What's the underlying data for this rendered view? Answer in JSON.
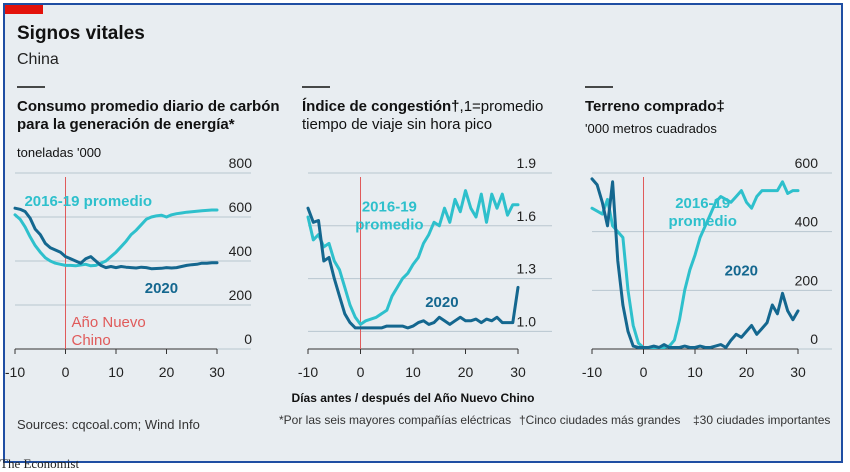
{
  "header": {
    "title": "Signos vitales",
    "subtitle": "China"
  },
  "footer": {
    "sources": "Sources: cqcoal.com; Wind Info",
    "note1": "*Por las seis mayores compañías eléctricas",
    "note2": "†Cinco ciudades más grandes",
    "note3": "‡30 ciudades importantes",
    "xlabel": "Días antes / después del Año Nuevo Chino",
    "brand": "The Economist"
  },
  "colors": {
    "y2020": "#14678f",
    "avg": "#2ec0cc",
    "zero": "#e05a5a",
    "grid": "#b9c6cf",
    "background": "#e8edf1",
    "accent": "#e3120b"
  },
  "chart_data": [
    {
      "type": "line",
      "title": "Consumo promedio diario de carbón para la generación de energía*",
      "title_lines": [
        "Consumo promedio diario de carbón",
        "para la generación de energía*"
      ],
      "unit": "toneladas '000",
      "xlim": [
        -10,
        30
      ],
      "xticks": [
        "-10",
        "0",
        "10",
        "20",
        "30"
      ],
      "ylim": [
        0,
        800
      ],
      "yticks": [
        "800",
        "600",
        "400",
        "200",
        "0"
      ],
      "yticks_values": [
        800,
        600,
        400,
        200,
        0
      ],
      "vline_label_lines": [
        "Año Nuevo",
        "Chino"
      ],
      "series": [
        {
          "name": "2016-19 promedio",
          "label_lines": [
            "2016-19 promedio"
          ],
          "label_at": [
            4.5,
            650
          ],
          "x": [
            -10,
            -9,
            -8,
            -7,
            -6,
            -5,
            -4,
            -3,
            -2,
            -1,
            0,
            1,
            2,
            3,
            4,
            5,
            6,
            7,
            8,
            9,
            10,
            11,
            12,
            13,
            14,
            15,
            16,
            17,
            18,
            19,
            20,
            21,
            22,
            23,
            24,
            25,
            26,
            27,
            28,
            29,
            30
          ],
          "values": [
            610,
            590,
            555,
            510,
            470,
            440,
            415,
            400,
            390,
            385,
            380,
            380,
            378,
            382,
            385,
            378,
            380,
            390,
            400,
            420,
            440,
            465,
            490,
            520,
            540,
            565,
            590,
            600,
            605,
            608,
            600,
            610,
            615,
            618,
            622,
            624,
            626,
            628,
            630,
            632,
            632
          ]
        },
        {
          "name": "2020",
          "label_lines": [
            "2020"
          ],
          "label_at": [
            19,
            255
          ],
          "x": [
            -10,
            -9,
            -8,
            -7,
            -6,
            -5,
            -4,
            -3,
            -2,
            -1,
            0,
            1,
            2,
            3,
            4,
            5,
            6,
            7,
            8,
            9,
            10,
            11,
            12,
            13,
            14,
            15,
            16,
            17,
            18,
            19,
            20,
            21,
            22,
            23,
            24,
            25,
            26,
            27,
            28,
            29,
            30
          ],
          "values": [
            640,
            635,
            625,
            595,
            545,
            520,
            480,
            460,
            450,
            440,
            420,
            410,
            400,
            390,
            410,
            420,
            400,
            380,
            370,
            375,
            370,
            375,
            372,
            370,
            368,
            372,
            370,
            365,
            366,
            367,
            370,
            368,
            370,
            375,
            380,
            383,
            385,
            390,
            390,
            392,
            392
          ]
        }
      ]
    },
    {
      "type": "line",
      "title": "Índice de congestión†, 1=promedio tiempo de viaje sin hora pico",
      "title_bold": "Índice de congestión†",
      "title_rest": ",1=promedio",
      "title_line2": "tiempo de viaje sin hora pico",
      "xlim": [
        -10,
        30
      ],
      "xticks": [
        "-10",
        "0",
        "10",
        "20",
        "30"
      ],
      "ylim": [
        0.9,
        1.9
      ],
      "yticks": [
        "1.9",
        "1.6",
        "1.3",
        "1.0"
      ],
      "yticks_values": [
        1.9,
        1.6,
        1.3,
        1.0
      ],
      "series": [
        {
          "name": "2016-19 promedio",
          "label_lines": [
            "2016-19",
            "promedio"
          ],
          "label_at": [
            5.5,
            1.68
          ],
          "x": [
            -10,
            -9,
            -8,
            -7,
            -6,
            -5,
            -4,
            -3,
            -2,
            -1,
            0,
            1,
            2,
            3,
            4,
            5,
            6,
            7,
            8,
            9,
            10,
            11,
            12,
            13,
            14,
            15,
            16,
            17,
            18,
            19,
            20,
            21,
            22,
            23,
            24,
            25,
            26,
            27,
            28,
            29,
            30
          ],
          "values": [
            1.65,
            1.52,
            1.55,
            1.48,
            1.5,
            1.4,
            1.35,
            1.25,
            1.15,
            1.08,
            1.04,
            1.06,
            1.07,
            1.08,
            1.1,
            1.12,
            1.2,
            1.25,
            1.3,
            1.33,
            1.38,
            1.42,
            1.5,
            1.55,
            1.62,
            1.6,
            1.7,
            1.62,
            1.75,
            1.68,
            1.8,
            1.7,
            1.65,
            1.78,
            1.62,
            1.78,
            1.7,
            1.78,
            1.66,
            1.72,
            1.72
          ]
        },
        {
          "name": "2020",
          "label_lines": [
            "2020"
          ],
          "label_at": [
            15.5,
            1.14
          ],
          "x": [
            -10,
            -9,
            -8,
            -7,
            -6,
            -5,
            -4,
            -3,
            -2,
            -1,
            0,
            1,
            2,
            3,
            4,
            5,
            6,
            7,
            8,
            9,
            10,
            11,
            12,
            13,
            14,
            15,
            16,
            17,
            18,
            19,
            20,
            21,
            22,
            23,
            24,
            25,
            26,
            27,
            28,
            29,
            30
          ],
          "values": [
            1.7,
            1.62,
            1.63,
            1.4,
            1.42,
            1.3,
            1.2,
            1.1,
            1.05,
            1.02,
            1.02,
            1.02,
            1.02,
            1.02,
            1.02,
            1.03,
            1.03,
            1.03,
            1.03,
            1.02,
            1.03,
            1.05,
            1.06,
            1.04,
            1.05,
            1.08,
            1.06,
            1.04,
            1.06,
            1.08,
            1.06,
            1.06,
            1.07,
            1.05,
            1.07,
            1.06,
            1.08,
            1.05,
            1.05,
            1.05,
            1.25
          ]
        }
      ]
    },
    {
      "type": "line",
      "title": "Terreno comprado‡",
      "unit": "'000 metros cuadrados",
      "xlim": [
        -10,
        30
      ],
      "xticks": [
        "-10",
        "0",
        "10",
        "20",
        "30"
      ],
      "ylim": [
        0,
        600
      ],
      "yticks": [
        "600",
        "400",
        "200",
        "0"
      ],
      "yticks_values": [
        600,
        400,
        200,
        0
      ],
      "series": [
        {
          "name": "2016-19 promedio",
          "label_lines": [
            "2016-19",
            "promedio"
          ],
          "label_at": [
            11.5,
            480
          ],
          "x": [
            -10,
            -9,
            -8,
            -7,
            -6,
            -5,
            -4,
            -3,
            -2,
            -1,
            0,
            1,
            2,
            3,
            4,
            5,
            6,
            7,
            8,
            9,
            10,
            11,
            12,
            13,
            14,
            15,
            16,
            17,
            18,
            19,
            20,
            21,
            22,
            23,
            24,
            25,
            26,
            27,
            28,
            29,
            30
          ],
          "values": [
            480,
            470,
            460,
            510,
            420,
            400,
            380,
            200,
            80,
            20,
            5,
            5,
            5,
            5,
            5,
            10,
            30,
            100,
            200,
            270,
            320,
            380,
            420,
            460,
            500,
            520,
            510,
            500,
            520,
            540,
            500,
            480,
            520,
            540,
            540,
            540,
            540,
            570,
            530,
            540,
            540
          ]
        },
        {
          "name": "2020",
          "label_lines": [
            "2020"
          ],
          "label_at": [
            19,
            250
          ],
          "x": [
            -10,
            -9,
            -8,
            -7,
            -6,
            -5,
            -4,
            -3,
            -2,
            -1,
            0,
            1,
            2,
            3,
            4,
            5,
            6,
            7,
            8,
            9,
            10,
            11,
            12,
            13,
            14,
            15,
            16,
            17,
            18,
            19,
            20,
            21,
            22,
            23,
            24,
            25,
            26,
            27,
            28,
            29,
            30
          ],
          "values": [
            580,
            560,
            500,
            420,
            570,
            300,
            150,
            60,
            10,
            5,
            5,
            5,
            10,
            5,
            15,
            5,
            5,
            5,
            10,
            5,
            5,
            10,
            5,
            5,
            10,
            15,
            5,
            30,
            50,
            40,
            60,
            80,
            50,
            70,
            90,
            150,
            120,
            190,
            130,
            100,
            130
          ]
        }
      ]
    }
  ]
}
